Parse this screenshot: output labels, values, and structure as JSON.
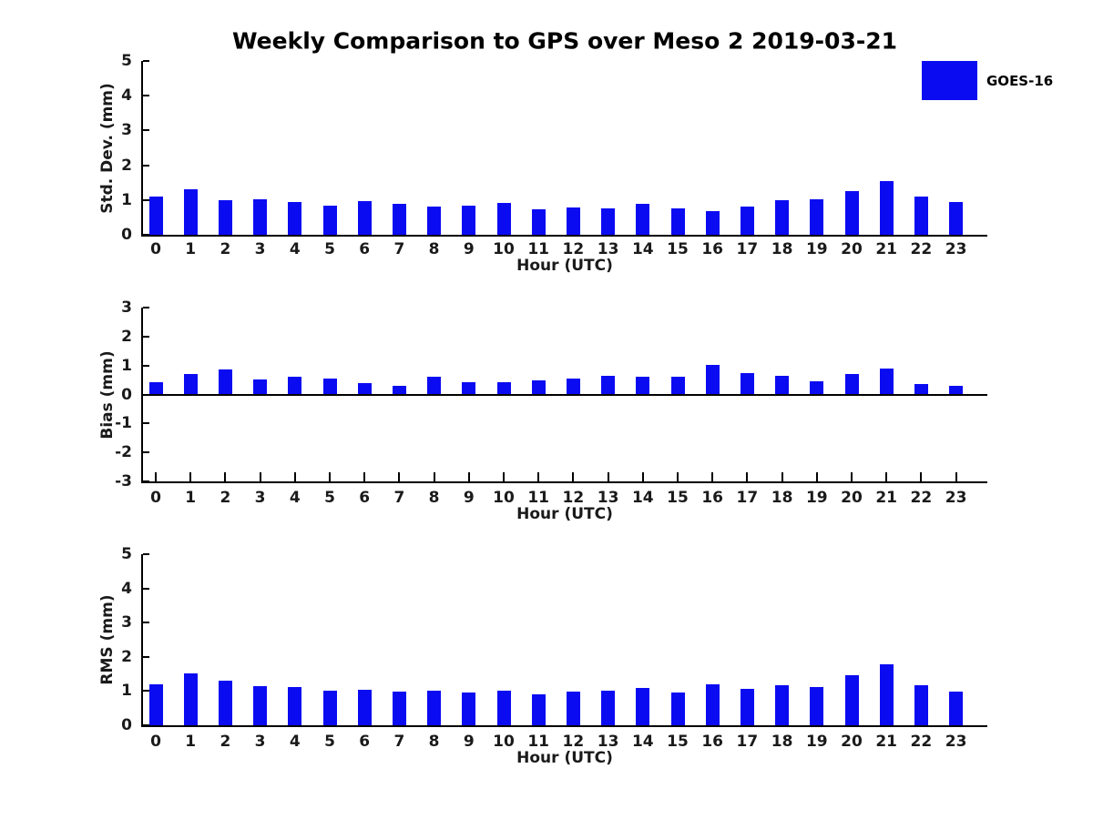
{
  "title": "Weekly Comparison to GPS over Meso 2 2019-03-21",
  "legend": {
    "label": "GOES-16",
    "swatch_color": "#0b0bf2",
    "position": "top-right"
  },
  "colors": {
    "bar": "#0b0bf2",
    "axis": "#000000",
    "text": "#1a1a1a"
  },
  "chart_data": [
    {
      "type": "bar",
      "panel": "top",
      "series_name": "GOES-16",
      "ylabel": "Std. Dev. (mm)",
      "xlabel": "Hour (UTC)",
      "ylim": [
        0,
        5
      ],
      "yticks": [
        0,
        1,
        2,
        3,
        4,
        5
      ],
      "grid": false,
      "categories": [
        "0",
        "1",
        "2",
        "3",
        "4",
        "5",
        "6",
        "7",
        "8",
        "9",
        "10",
        "11",
        "12",
        "13",
        "14",
        "15",
        "16",
        "17",
        "18",
        "19",
        "20",
        "21",
        "22",
        "23"
      ],
      "values": [
        1.1,
        1.32,
        1.0,
        1.02,
        0.94,
        0.84,
        0.96,
        0.9,
        0.8,
        0.85,
        0.91,
        0.74,
        0.78,
        0.77,
        0.89,
        0.77,
        0.68,
        0.8,
        0.99,
        1.02,
        1.26,
        1.54,
        1.1,
        0.95
      ]
    },
    {
      "type": "bar",
      "panel": "middle",
      "series_name": "GOES-16",
      "ylabel": "Bias (mm)",
      "xlabel": "Hour (UTC)",
      "ylim": [
        -3,
        3
      ],
      "yticks": [
        -3,
        -2,
        -1,
        0,
        1,
        2,
        3
      ],
      "grid": false,
      "categories": [
        "0",
        "1",
        "2",
        "3",
        "4",
        "5",
        "6",
        "7",
        "8",
        "9",
        "10",
        "11",
        "12",
        "13",
        "14",
        "15",
        "16",
        "17",
        "18",
        "19",
        "20",
        "21",
        "22",
        "23"
      ],
      "values": [
        0.42,
        0.7,
        0.85,
        0.53,
        0.62,
        0.56,
        0.38,
        0.31,
        0.61,
        0.43,
        0.43,
        0.49,
        0.56,
        0.65,
        0.62,
        0.62,
        1.02,
        0.74,
        0.64,
        0.46,
        0.71,
        0.88,
        0.36,
        0.3
      ]
    },
    {
      "type": "bar",
      "panel": "bottom",
      "series_name": "GOES-16",
      "ylabel": "RMS (mm)",
      "xlabel": "Hour (UTC)",
      "ylim": [
        0,
        5
      ],
      "yticks": [
        0,
        1,
        2,
        3,
        4,
        5
      ],
      "grid": false,
      "categories": [
        "0",
        "1",
        "2",
        "3",
        "4",
        "5",
        "6",
        "7",
        "8",
        "9",
        "10",
        "11",
        "12",
        "13",
        "14",
        "15",
        "16",
        "17",
        "18",
        "19",
        "20",
        "21",
        "22",
        "23"
      ],
      "values": [
        1.19,
        1.51,
        1.3,
        1.14,
        1.11,
        1.01,
        1.03,
        0.99,
        1.01,
        0.97,
        1.01,
        0.9,
        0.98,
        1.0,
        1.08,
        0.97,
        1.21,
        1.07,
        1.16,
        1.13,
        1.45,
        1.78,
        1.16,
        0.99
      ]
    }
  ]
}
